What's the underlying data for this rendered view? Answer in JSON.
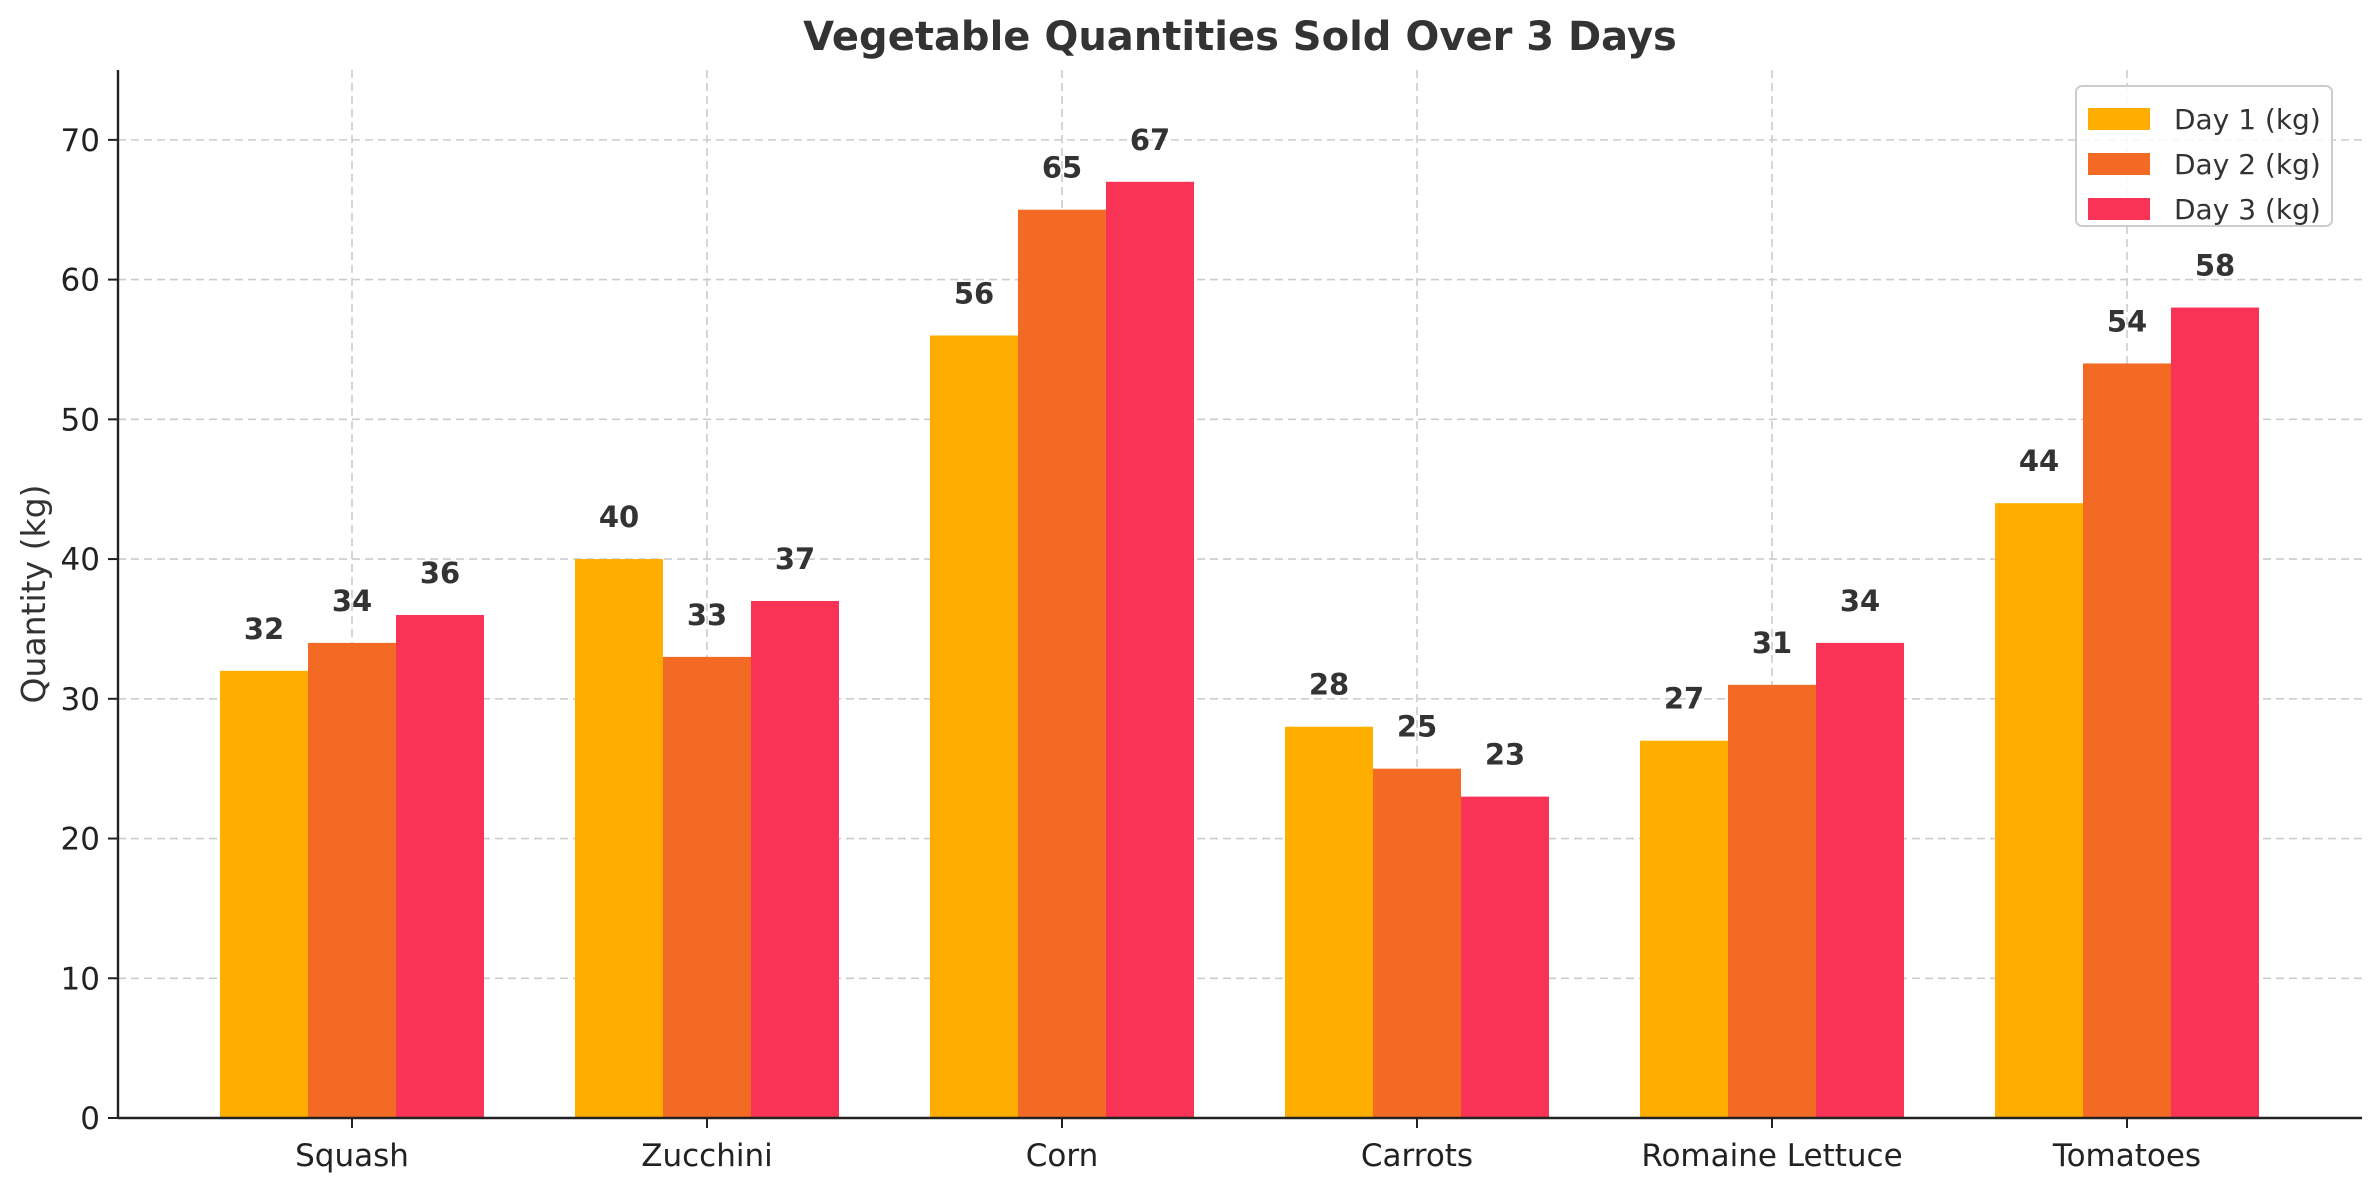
{
  "chart_data": {
    "type": "bar",
    "title": "Vegetable Quantities Sold Over 3 Days",
    "xlabel": "",
    "ylabel": "Quantity (kg)",
    "categories": [
      "Squash",
      "Zucchini",
      "Corn",
      "Carrots",
      "Romaine Lettuce",
      "Tomatoes"
    ],
    "series": [
      {
        "name": "Day 1 (kg)",
        "color": "#FFAE00",
        "values": [
          32,
          40,
          56,
          28,
          27,
          44
        ]
      },
      {
        "name": "Day 2 (kg)",
        "color": "#F26A24",
        "values": [
          34,
          33,
          65,
          25,
          31,
          54
        ]
      },
      {
        "name": "Day 3 (kg)",
        "color": "#F83356",
        "values": [
          36,
          37,
          67,
          23,
          34,
          58
        ]
      }
    ],
    "ylim": [
      0,
      75
    ],
    "yticks": [
      0,
      10,
      20,
      30,
      40,
      50,
      60,
      70
    ],
    "grid": true,
    "legend_position": "top-right",
    "data_labels": true
  }
}
